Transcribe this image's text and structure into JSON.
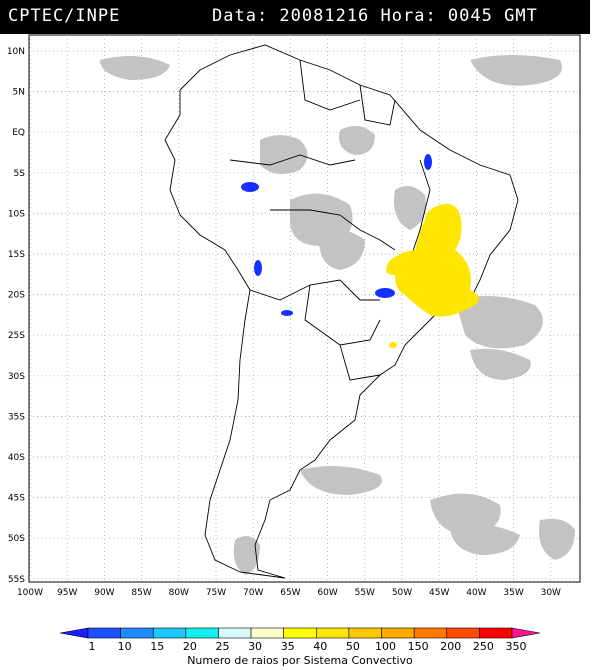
{
  "header": {
    "organization": "CPTEC/INPE",
    "timestamp": "Data: 20081216 Hora: 0045 GMT"
  },
  "map": {
    "lat_labels": [
      "10N",
      "5N",
      "EQ",
      "5S",
      "10S",
      "15S",
      "20S",
      "25S",
      "30S",
      "35S",
      "40S",
      "45S",
      "50S",
      "55S"
    ],
    "lon_labels": [
      "100W",
      "95W",
      "90W",
      "85W",
      "80W",
      "75W",
      "70W",
      "65W",
      "60W",
      "55W",
      "50W",
      "45W",
      "40W",
      "35W",
      "30W"
    ],
    "colors": {
      "coastline": "#000000",
      "gridline": "#9a9a9a",
      "cloud_cover": "#bdbdbd",
      "low_class": "#1530ff",
      "high_class": "#ffe600"
    }
  },
  "legend": {
    "title": "Numero de raios por Sistema Convectivo",
    "values": [
      "1",
      "10",
      "15",
      "20",
      "25",
      "30",
      "35",
      "40",
      "50",
      "100",
      "150",
      "200",
      "250",
      "350"
    ],
    "colors": [
      "#1c1cff",
      "#1e50ff",
      "#1e8cff",
      "#1ec8ff",
      "#14f0f0",
      "#d6fafa",
      "#ffffc8",
      "#ffff00",
      "#ffe600",
      "#ffc800",
      "#ffaa00",
      "#ff7800",
      "#ff4b00",
      "#ff0000",
      "#ff1493"
    ]
  }
}
